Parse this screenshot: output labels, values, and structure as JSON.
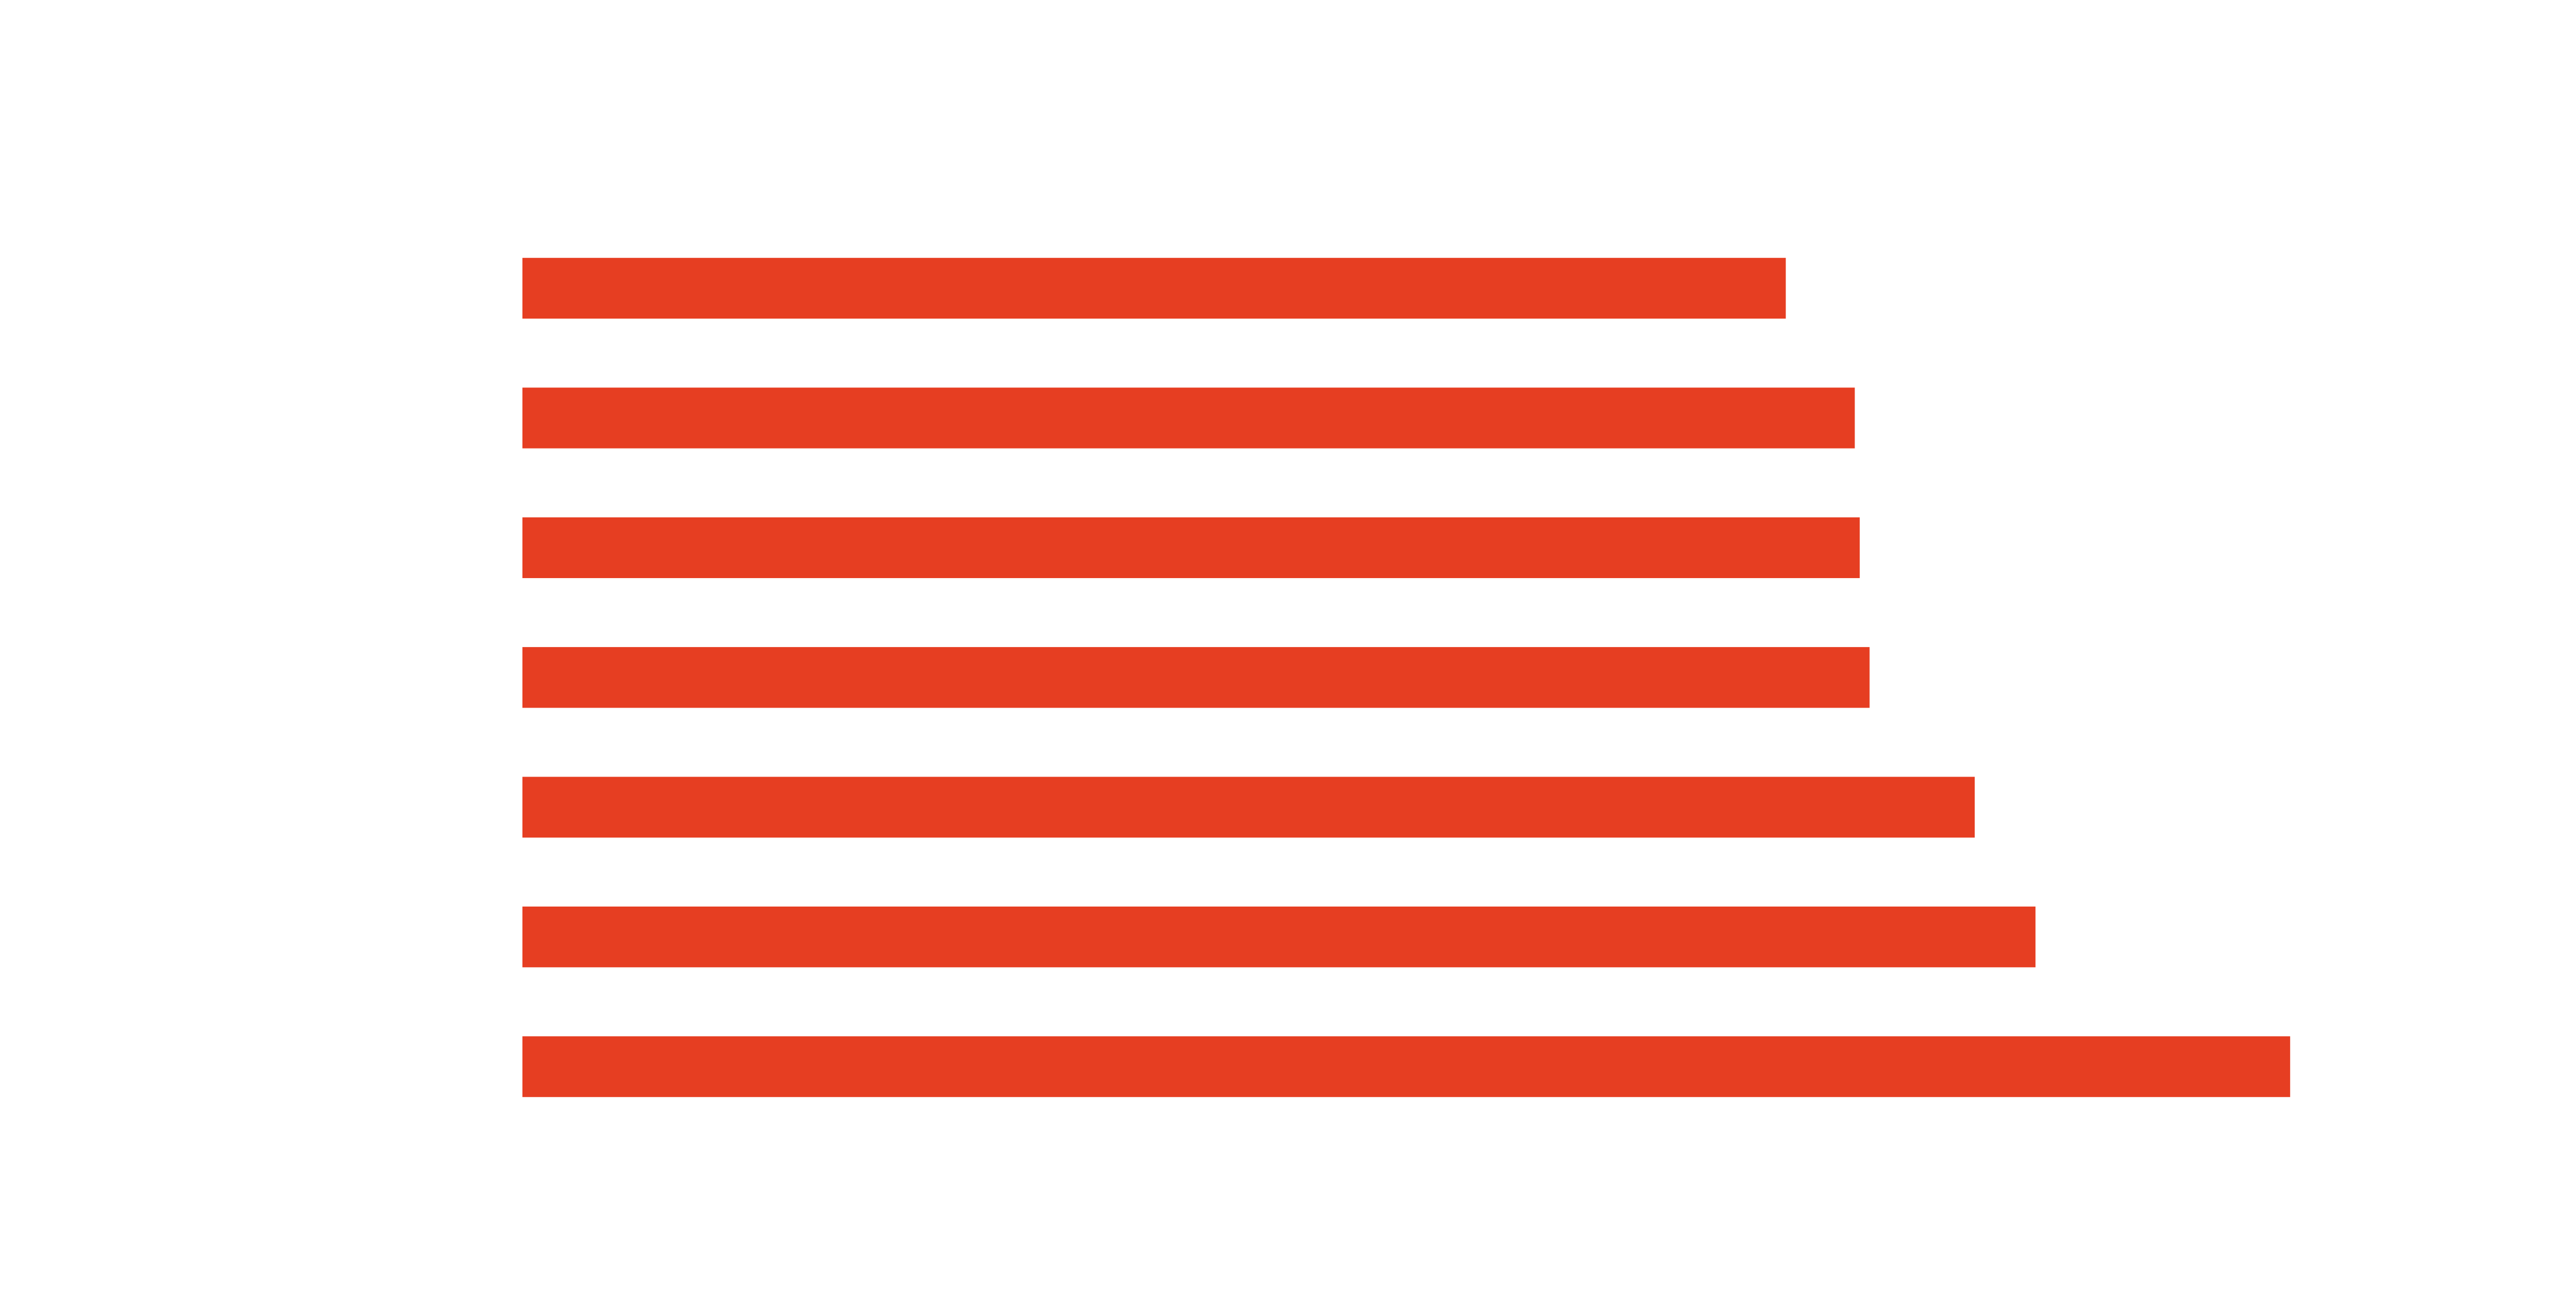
{
  "chart_data": {
    "type": "barh",
    "values": [
      769,
      811,
      814,
      820,
      884,
      921,
      1076
    ],
    "color": "#e63e22",
    "xlim": [
      0,
      1076
    ]
  }
}
